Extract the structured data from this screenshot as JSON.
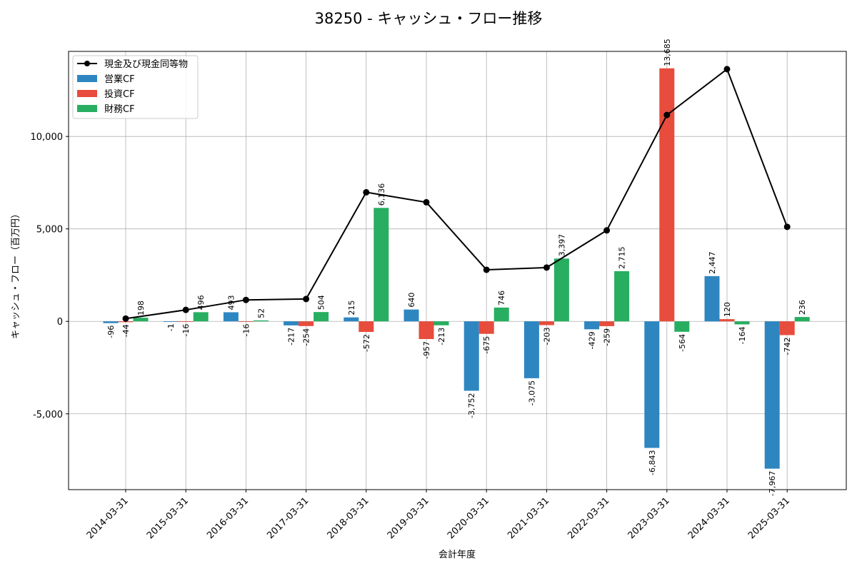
{
  "chart_data": {
    "type": "bar",
    "title": "38250 - キャッシュ・フロー推移",
    "xlabel": "会計年度",
    "ylabel": "キャッシュ・フロー（百万円）",
    "categories": [
      "2014-03-31",
      "2015-03-31",
      "2016-03-31",
      "2017-03-31",
      "2018-03-31",
      "2019-03-31",
      "2020-03-31",
      "2021-03-31",
      "2022-03-31",
      "2023-03-31",
      "2024-03-31",
      "2025-03-31"
    ],
    "series": [
      {
        "name": "営業CF",
        "kind": "bar",
        "color": "#2e86c1",
        "values": [
          -96,
          -1,
          493,
          -217,
          215,
          640,
          -3752,
          -3075,
          -429,
          -6843,
          2447,
          -7967
        ],
        "labels": [
          "-96",
          "-1",
          "493",
          "-217",
          "215",
          "640",
          "-3,752",
          "-3,075",
          "-429",
          "-6,843",
          "2,447",
          "-7,967"
        ]
      },
      {
        "name": "投資CF",
        "kind": "bar",
        "color": "#e74c3c",
        "values": [
          -44,
          -16,
          -16,
          -254,
          -572,
          -957,
          -675,
          -203,
          -259,
          13685,
          120,
          -742
        ],
        "labels": [
          "-44",
          "-16",
          "-16",
          "-254",
          "-572",
          "-957",
          "-675",
          "-203",
          "-259",
          "13,685",
          "120",
          "-742"
        ]
      },
      {
        "name": "財務CF",
        "kind": "bar",
        "color": "#27ae60",
        "values": [
          198,
          496,
          52,
          504,
          6136,
          -213,
          746,
          3397,
          2715,
          -564,
          -164,
          236
        ],
        "labels": [
          "198",
          "496",
          "52",
          "504",
          "6,136",
          "-213",
          "746",
          "3,397",
          "2,715",
          "-564",
          "-164",
          "236"
        ]
      },
      {
        "name": "現金及び現金同等物",
        "kind": "line",
        "color": "#000000",
        "values": [
          150,
          620,
          1160,
          1210,
          6980,
          6440,
          2790,
          2910,
          4920,
          11160,
          13640,
          5110
        ]
      }
    ],
    "ylim": [
      -9100,
      14600
    ],
    "yticks": [
      -5000,
      0,
      5000,
      10000
    ],
    "ytick_labels": [
      "-5,000",
      "0",
      "5,000",
      "10,000"
    ],
    "grid": true,
    "legend_position": "top-left"
  }
}
